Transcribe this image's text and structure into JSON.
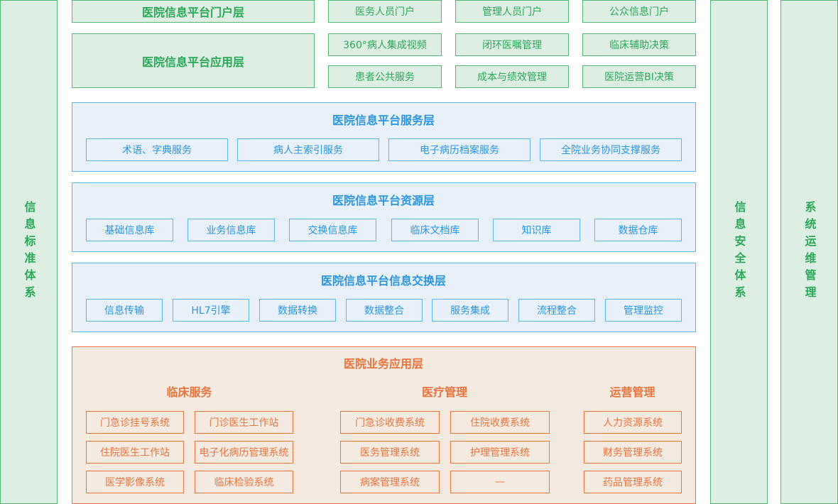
{
  "colors": {
    "green": "#2aa858",
    "blue": "#2a95e0",
    "orange": "#e8743e"
  },
  "side": {
    "left": "信息标准体系",
    "right1": "信息安全体系",
    "right2": "系统运维管理"
  },
  "portal": {
    "title": "医院信息平台门户层",
    "items": [
      "医务人员门户",
      "管理人员门户",
      "公众信息门户"
    ]
  },
  "app": {
    "title": "医院信息平台应用层",
    "items": [
      "360°病人集成视频",
      "闭环医嘱管理",
      "临床辅助决策",
      "患者公共服务",
      "成本与绩效管理",
      "医院运营BI决策"
    ]
  },
  "service": {
    "title": "医院信息平台服务层",
    "items": [
      "术语、字典服务",
      "病人主索引服务",
      "电子病历档案服务",
      "全院业务协同支撑服务"
    ]
  },
  "resource": {
    "title": "医院信息平台资源层",
    "items": [
      "基础信息库",
      "业务信息库",
      "交换信息库",
      "临床文档库",
      "知识库",
      "数据仓库"
    ]
  },
  "exchange": {
    "title": "医院信息平台信息交换层",
    "items": [
      "信息传输",
      "HL7引擎",
      "数据转换",
      "数据整合",
      "服务集成",
      "流程整合",
      "管理监控"
    ]
  },
  "business": {
    "title": "医院业务应用层",
    "groups": [
      {
        "title": "临床服务",
        "items": [
          "门急诊挂号系统",
          "门诊医生工作站",
          "住院医生工作站",
          "电子化病历管理系统",
          "医学影像系统",
          "临床检验系统"
        ]
      },
      {
        "title": "医疗管理",
        "items": [
          "门急诊收费系统",
          "住院收费系统",
          "医务管理系统",
          "护理管理系统",
          "病案管理系统",
          "—"
        ]
      },
      {
        "title": "运营管理",
        "items": [
          "人力资源系统",
          "财务管理系统",
          "药品管理系统"
        ]
      }
    ]
  }
}
